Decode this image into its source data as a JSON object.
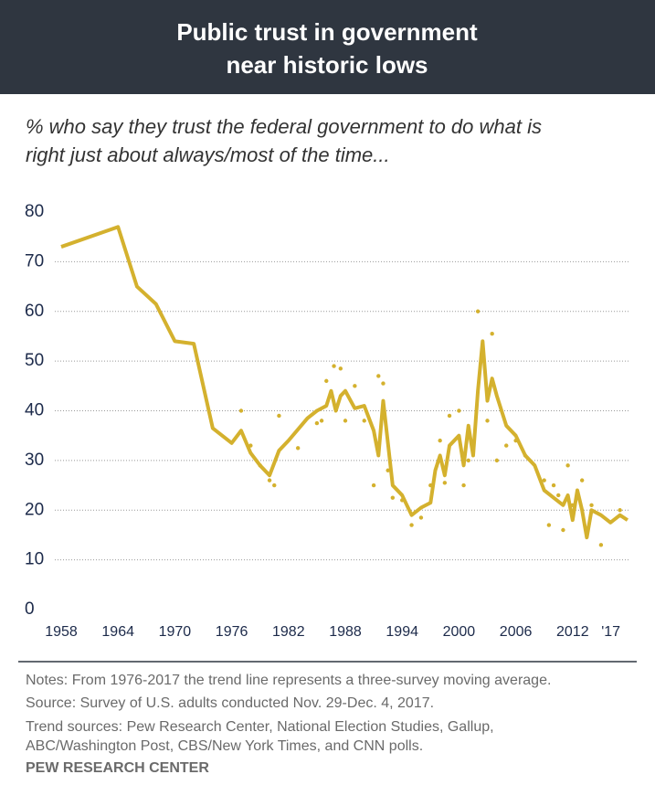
{
  "chart_data": {
    "type": "line",
    "title": [
      "Public trust in government",
      "near historic lows"
    ],
    "subtitle": [
      "% who say they trust the federal government to do what is",
      "right just about always/most of the time..."
    ],
    "notes": [
      "Notes: From 1976-2017 the trend line represents a three-survey moving average.",
      "Source: Survey of U.S. adults conducted Nov. 29-Dec. 4, 2017.",
      "Trend sources: Pew Research Center, National Election Studies, Gallup,",
      "ABC/Washington Post, CBS/New York Times, and CNN polls."
    ],
    "source": "PEW RESEARCH CENTER",
    "xlim": [
      1958,
      2018
    ],
    "xticks": [
      1958,
      1964,
      1970,
      1976,
      1982,
      1988,
      1994,
      2000,
      2006,
      2012,
      {
        "value": 2017,
        "label": "'17"
      }
    ],
    "ylim": [
      0,
      80
    ],
    "yticks": [
      0,
      10,
      20,
      30,
      40,
      50,
      60,
      70,
      80
    ],
    "grid": true,
    "series": [
      {
        "type": "line",
        "color": "#d4b12e",
        "x": [
          1958,
          1964,
          1966,
          1968,
          1970,
          1972,
          1974,
          1976,
          1977,
          1978,
          1979,
          1980,
          1981,
          1982,
          1984,
          1985,
          1986,
          1986.5,
          1987,
          1987.5,
          1988,
          1989,
          1990,
          1991,
          1991.5,
          1992,
          1993,
          1994,
          1995,
          1996,
          1997,
          1997.5,
          1998,
          1998.5,
          1999,
          2000,
          2000.5,
          2001,
          2001.5,
          2002,
          2002.5,
          2003,
          2003.5,
          2004,
          2005,
          2006,
          2007,
          2008,
          2009,
          2010,
          2011,
          2011.5,
          2012,
          2012.5,
          2013,
          2013.5,
          2014,
          2015,
          2016,
          2017,
          2017.8
        ],
        "values": [
          73,
          77,
          65,
          61.5,
          54,
          53.5,
          36.5,
          33.5,
          36,
          31.5,
          29,
          27,
          32,
          34,
          38.5,
          40,
          41,
          44,
          40,
          43,
          44,
          40.5,
          41,
          36,
          31,
          42,
          25,
          23,
          19,
          20.5,
          21.5,
          28,
          31,
          27,
          33,
          35,
          29,
          37,
          31,
          44,
          54,
          42,
          46.5,
          43,
          37,
          35,
          31,
          29,
          24,
          22.5,
          21,
          23,
          18,
          24,
          20,
          14.5,
          20,
          19,
          17.5,
          19,
          18
        ]
      },
      {
        "type": "scatter",
        "color": "#d4b12e",
        "x": [
          1977,
          1978,
          1979,
          1980,
          1980.5,
          1981,
          1983,
          1985,
          1985.5,
          1986,
          1986.8,
          1987.5,
          1988,
          1989,
          1990,
          1991,
          1991.5,
          1992,
          1992.5,
          1993,
          1994,
          1995,
          1996,
          1997,
          1998,
          1998.5,
          1999,
          2000,
          2000.5,
          2001,
          2002,
          2003,
          2003.5,
          2004,
          2005,
          2006,
          2007,
          2009,
          2009.5,
          2010,
          2010.5,
          2011,
          2011.5,
          2012,
          2013,
          2014,
          2015,
          2017
        ],
        "values": [
          40,
          33,
          29,
          26,
          25,
          39,
          32.5,
          37.5,
          38,
          46,
          49,
          48.5,
          38,
          45,
          38,
          25,
          47,
          45.5,
          28,
          22.5,
          22,
          17,
          18.5,
          25,
          34,
          25.5,
          39,
          40,
          25,
          30,
          60,
          38,
          55.5,
          30,
          33,
          34,
          31,
          26,
          17,
          25,
          23,
          16,
          29,
          21,
          26,
          21,
          13,
          20
        ]
      }
    ]
  }
}
